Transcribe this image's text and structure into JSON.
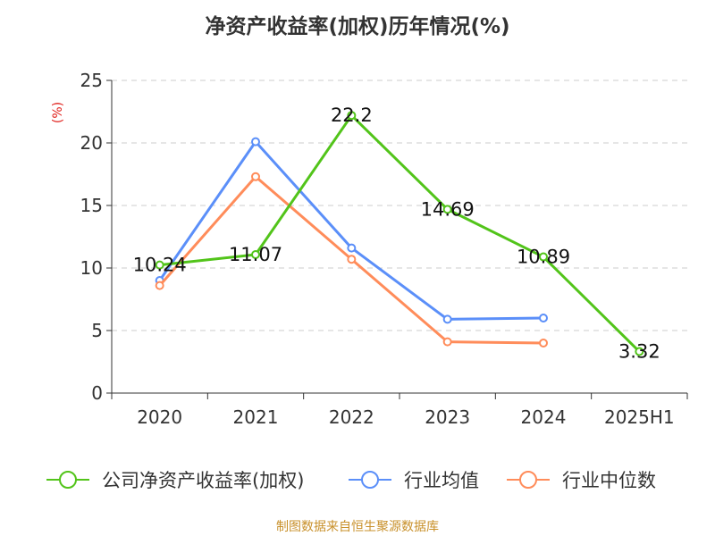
{
  "chart_data": {
    "type": "line",
    "title": "净资产收益率(加权)历年情况(%)",
    "ylabel": "(%)",
    "xlabel": "",
    "categories": [
      "2020",
      "2021",
      "2022",
      "2023",
      "2024",
      "2025H1"
    ],
    "ylim": [
      0,
      25
    ],
    "yticks": [
      0,
      5,
      10,
      15,
      20,
      25
    ],
    "grid": true,
    "legend_position": "bottom",
    "series": [
      {
        "name": "公司净资产收益率(加权)",
        "color": "#52c41a",
        "values": [
          10.24,
          11.07,
          22.2,
          14.69,
          10.89,
          3.32
        ],
        "labels": [
          "10.24",
          "11.07",
          "22.2",
          "14.69",
          "10.89",
          "3.32"
        ]
      },
      {
        "name": "行业均值",
        "color": "#5b8ff9",
        "values": [
          9.0,
          20.1,
          11.6,
          5.9,
          6.0,
          null
        ]
      },
      {
        "name": "行业中位数",
        "color": "#ff8c5a",
        "values": [
          8.6,
          17.3,
          10.7,
          4.1,
          4.0,
          null
        ]
      }
    ]
  },
  "footer": {
    "source": "制图数据来自恒生聚源数据库"
  }
}
